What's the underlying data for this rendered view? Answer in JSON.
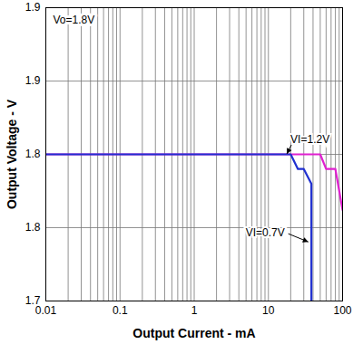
{
  "chart_data": {
    "type": "line",
    "title": "Vo=1.8V",
    "x_label": "Output Current - mA",
    "y_label": "Output Voltage - V",
    "log": "x",
    "grid": true,
    "xlim": [
      0.01,
      100
    ],
    "xticks": [
      0.01,
      0.1,
      1,
      10,
      100
    ],
    "ylim": [
      1.7,
      1.9
    ],
    "yticks": [
      1.7,
      {
        "value": 1.75,
        "label": "1.8"
      },
      1.8,
      {
        "value": 1.85,
        "label": "1.9"
      },
      1.9
    ],
    "series": [
      {
        "name": "VI=1.2V",
        "color": "#e020d0",
        "x": [
          0.01,
          50,
          60,
          75,
          80,
          100
        ],
        "values": [
          1.8,
          1.8,
          1.79,
          1.79,
          1.79,
          1.762
        ]
      },
      {
        "name": "VI=0.7V",
        "color": "#2030d0",
        "x": [
          0.01,
          20,
          25,
          30,
          38,
          38
        ],
        "values": [
          1.8,
          1.8,
          1.79,
          1.79,
          1.78,
          1.7
        ]
      }
    ],
    "annotations": [
      {
        "text": "VI=1.2V",
        "x": 18,
        "y": 1.8
      },
      {
        "text": "VI=0.7V",
        "x": 35,
        "y": 1.74
      }
    ]
  }
}
